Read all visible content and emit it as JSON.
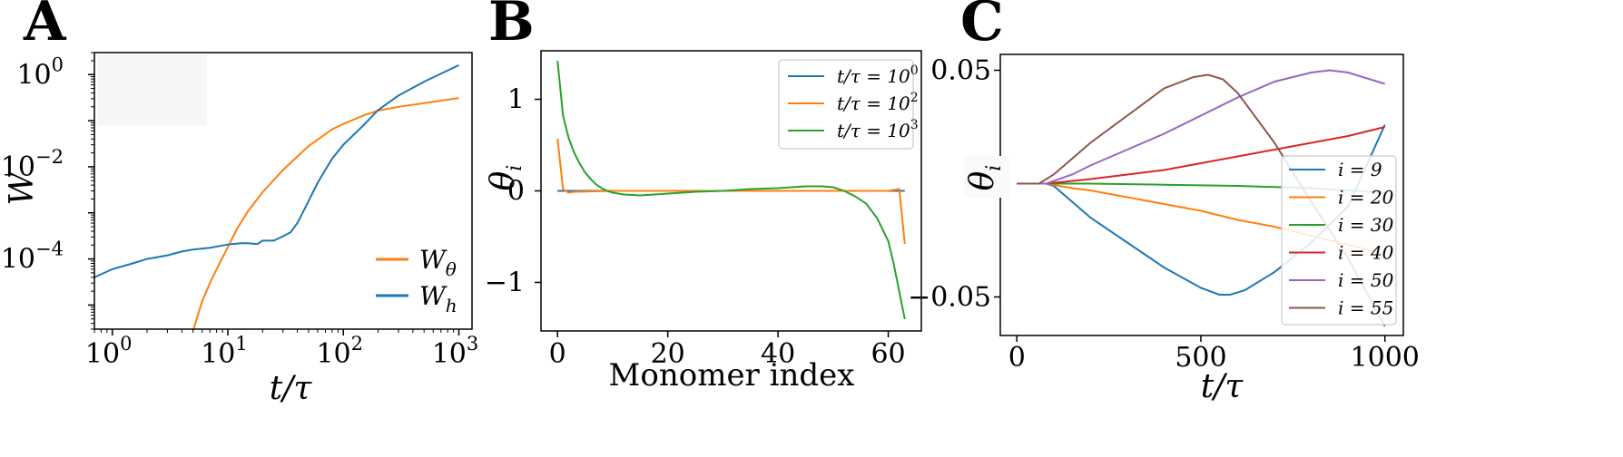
{
  "colors": {
    "blue": "#1f77b4",
    "orange": "#ff7f0e",
    "green": "#2ca02c",
    "red": "#d62728",
    "purple": "#9467bd",
    "brown": "#8c564b"
  },
  "chart_data": [
    {
      "panel": "A",
      "type": "line",
      "xscale": "log",
      "yscale": "log",
      "xlabel": "t/τ",
      "ylabel": "W",
      "xlim": [
        0.7,
        1300
      ],
      "ylim": [
        3e-06,
        3
      ],
      "xticks": [
        {
          "base": "10",
          "exp": "0",
          "value": 1
        },
        {
          "base": "10",
          "exp": "1",
          "value": 10
        },
        {
          "base": "10",
          "exp": "2",
          "value": 100
        },
        {
          "base": "10",
          "exp": "3",
          "value": 1000
        }
      ],
      "yticks": [
        {
          "base": "10",
          "exp": "−4",
          "value": 0.0001
        },
        {
          "base": "10",
          "exp": "−2",
          "value": 0.01
        },
        {
          "base": "10",
          "exp": "0",
          "value": 1
        }
      ],
      "legend_position": "lower-right",
      "series": [
        {
          "name": "W_θ",
          "label_base": "W",
          "label_sub": "θ",
          "color": "#ff7f0e",
          "x": [
            5,
            6,
            7,
            8,
            10,
            12,
            15,
            20,
            30,
            50,
            80,
            100,
            150,
            200,
            300,
            500,
            1000
          ],
          "y": [
            2.8e-06,
            1.2e-05,
            3e-05,
            6e-05,
            0.00018,
            0.00045,
            0.0011,
            0.0028,
            0.0085,
            0.028,
            0.065,
            0.085,
            0.13,
            0.165,
            0.2,
            0.24,
            0.31
          ]
        },
        {
          "name": "W_h",
          "label_base": "W",
          "label_sub": "h",
          "color": "#1f77b4",
          "x": [
            0.7,
            1,
            1.5,
            2,
            3,
            4,
            5,
            7,
            10,
            13,
            15,
            18,
            20,
            25,
            30,
            35,
            40,
            50,
            60,
            80,
            100,
            150,
            200,
            300,
            500,
            1000
          ],
          "y": [
            4e-05,
            6e-05,
            8e-05,
            0.0001,
            0.00012,
            0.000145,
            0.00016,
            0.000175,
            0.000205,
            0.00022,
            0.00022,
            0.00021,
            0.00025,
            0.00025,
            0.00031,
            0.00038,
            0.0006,
            0.0018,
            0.0045,
            0.015,
            0.03,
            0.08,
            0.17,
            0.35,
            0.7,
            1.6
          ]
        }
      ]
    },
    {
      "panel": "B",
      "type": "line",
      "xlabel": "Monomer index",
      "ylabel": "θ_i",
      "ylabel_base": "θ",
      "ylabel_sub": "i",
      "xlim": [
        -3,
        66
      ],
      "ylim": [
        -1.53,
        1.53
      ],
      "xticks": [
        "0",
        "20",
        "40",
        "60"
      ],
      "yticks": [
        "−1",
        "0",
        "1"
      ],
      "legend_position": "upper-right",
      "series": [
        {
          "name": "t/τ = 10^0",
          "label_pre": "t/τ = 10",
          "label_exp": "0",
          "color": "#1f77b4",
          "x": [
            0,
            63
          ],
          "y": [
            0,
            0
          ]
        },
        {
          "name": "t/τ = 10^2",
          "label_pre": "t/τ = 10",
          "label_exp": "2",
          "color": "#ff7f0e",
          "x": [
            0,
            1,
            2,
            3,
            10,
            20,
            40,
            60,
            61,
            62,
            63
          ],
          "y": [
            0.57,
            0.02,
            -0.02,
            -0.01,
            0,
            0,
            0,
            0,
            0.01,
            0.02,
            -0.58
          ]
        },
        {
          "name": "t/τ = 10^3",
          "label_pre": "t/τ = 10",
          "label_exp": "3",
          "color": "#2ca02c",
          "x": [
            0,
            1,
            2,
            3,
            4,
            5,
            6,
            7,
            8,
            9,
            10,
            12,
            15,
            20,
            25,
            30,
            35,
            40,
            45,
            48,
            50,
            52,
            54,
            56,
            58,
            60,
            61,
            62,
            63
          ],
          "y": [
            1.42,
            0.82,
            0.58,
            0.42,
            0.3,
            0.2,
            0.13,
            0.07,
            0.03,
            0.0,
            -0.02,
            -0.04,
            -0.05,
            -0.03,
            -0.01,
            0.0,
            0.02,
            0.03,
            0.05,
            0.05,
            0.04,
            0.0,
            -0.06,
            -0.14,
            -0.3,
            -0.55,
            -0.8,
            -1.1,
            -1.4
          ]
        }
      ]
    },
    {
      "panel": "C",
      "type": "line",
      "xlabel": "t/τ",
      "ylabel": "θ_i",
      "ylabel_base": "θ",
      "ylabel_sub": "i",
      "xlim": [
        -45,
        1050
      ],
      "ylim": [
        -0.067,
        0.057
      ],
      "xticks": [
        "0",
        "500",
        "1000"
      ],
      "yticks": [
        "−0.05",
        "0.05"
      ],
      "legend_position": "right",
      "series": [
        {
          "name": "i = 9",
          "color": "#1f77b4",
          "x": [
            0,
            80,
            100,
            150,
            200,
            300,
            400,
            500,
            550,
            580,
            620,
            700,
            800,
            900,
            1000
          ],
          "y": [
            0,
            0,
            -0.001,
            -0.008,
            -0.015,
            -0.026,
            -0.037,
            -0.046,
            -0.049,
            -0.049,
            -0.047,
            -0.039,
            -0.026,
            -0.01,
            0.026
          ]
        },
        {
          "name": "i = 20",
          "color": "#ff7f0e",
          "x": [
            0,
            80,
            150,
            200,
            300,
            400,
            500,
            600,
            700,
            800,
            900,
            1000
          ],
          "y": [
            0,
            0,
            -0.002,
            -0.003,
            -0.006,
            -0.009,
            -0.012,
            -0.016,
            -0.019,
            -0.023,
            -0.027,
            -0.031
          ]
        },
        {
          "name": "i = 30",
          "color": "#2ca02c",
          "x": [
            0,
            200,
            400,
            600,
            800,
            1000
          ],
          "y": [
            0,
            0,
            -0.0005,
            -0.001,
            -0.002,
            -0.004
          ]
        },
        {
          "name": "i = 40",
          "color": "#d62728",
          "x": [
            0,
            80,
            200,
            300,
            400,
            500,
            600,
            700,
            800,
            900,
            1000
          ],
          "y": [
            0,
            0,
            0.002,
            0.004,
            0.006,
            0.009,
            0.012,
            0.015,
            0.018,
            0.021,
            0.025
          ]
        },
        {
          "name": "i = 50",
          "color": "#9467bd",
          "x": [
            0,
            80,
            150,
            200,
            300,
            400,
            500,
            600,
            700,
            800,
            850,
            900,
            1000
          ],
          "y": [
            0,
            0,
            0.004,
            0.008,
            0.015,
            0.022,
            0.03,
            0.038,
            0.045,
            0.049,
            0.05,
            0.049,
            0.044
          ]
        },
        {
          "name": "i = 55",
          "color": "#8c564b",
          "x": [
            0,
            60,
            100,
            150,
            200,
            300,
            400,
            480,
            520,
            560,
            600,
            700,
            800,
            900,
            1000
          ],
          "y": [
            0,
            0,
            0.004,
            0.011,
            0.018,
            0.03,
            0.042,
            0.047,
            0.048,
            0.046,
            0.04,
            0.018,
            -0.008,
            -0.033,
            -0.063
          ]
        }
      ]
    }
  ]
}
